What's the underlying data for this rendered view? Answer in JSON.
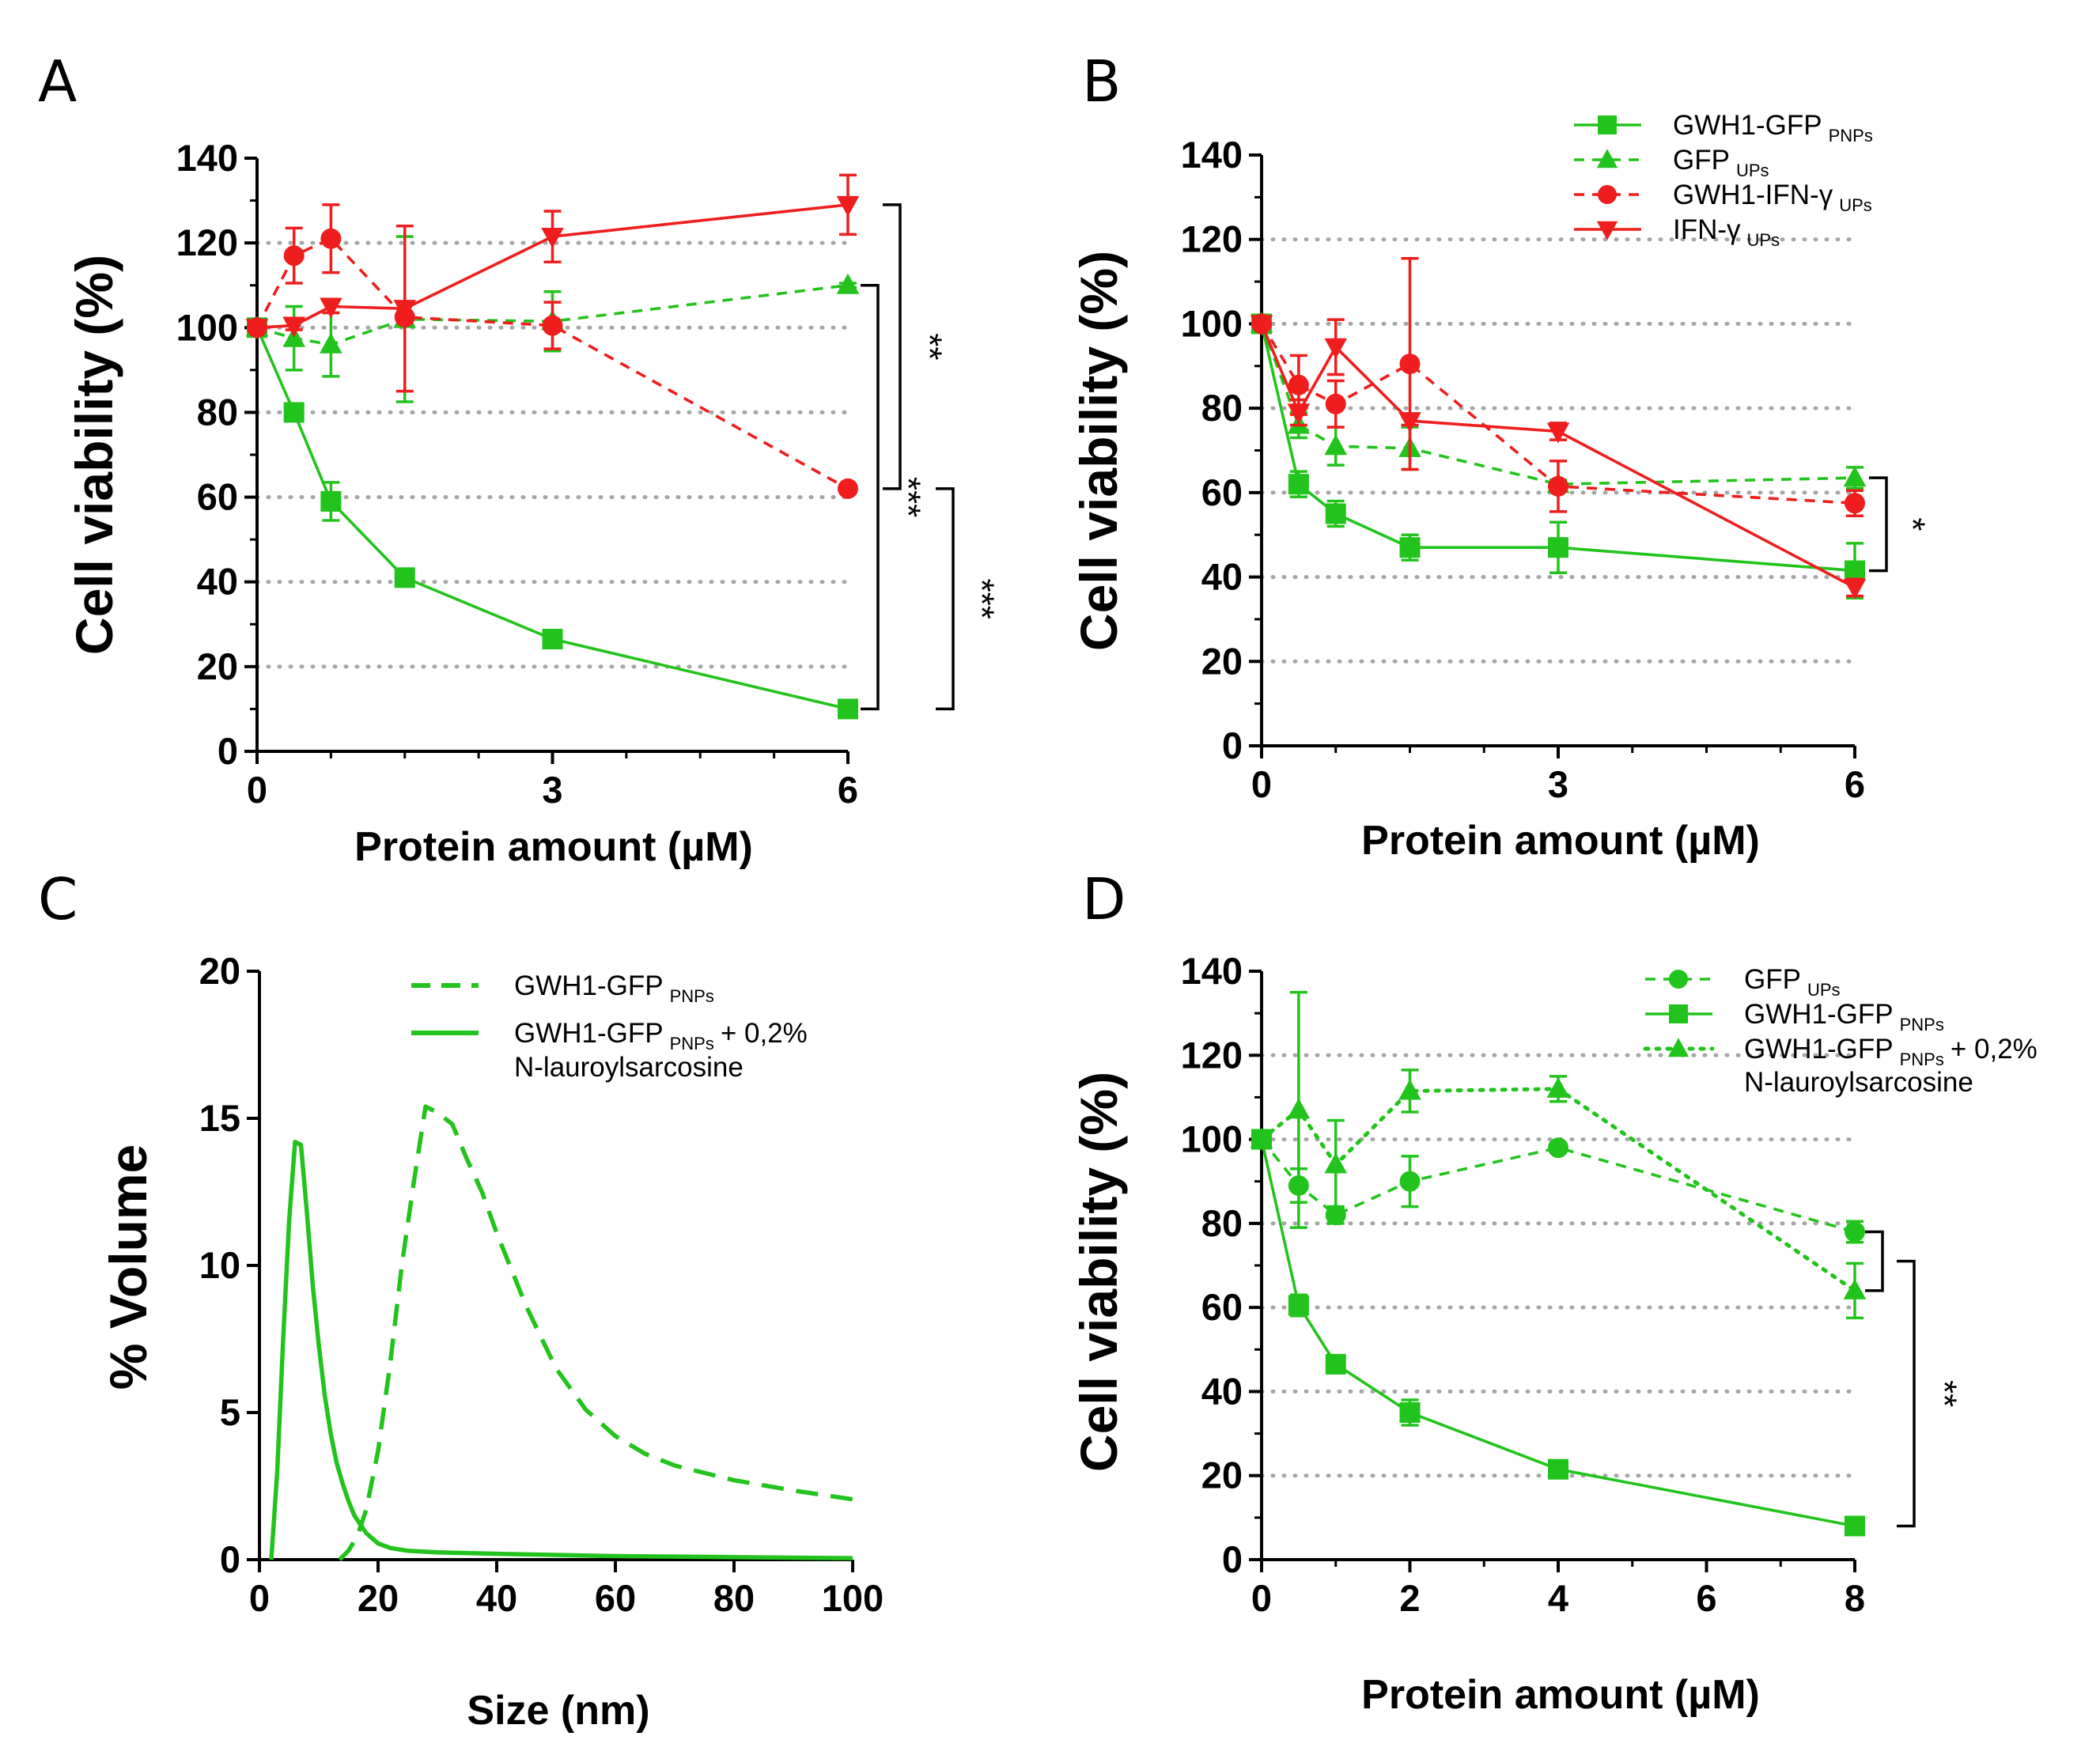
{
  "colors": {
    "green": "#22c31c",
    "red": "#ef1d1d",
    "grid": "#a6a6a6",
    "axis": "#000000"
  },
  "chart_data": [
    {
      "id": "A",
      "panel_label": "A",
      "type": "line",
      "xlabel": "Protein amount (µM)",
      "ylabel": "Cell viability (%)",
      "xlim": [
        0,
        6
      ],
      "ylim": [
        0,
        140
      ],
      "xticks": [
        "0",
        "3",
        "6"
      ],
      "yticks": [
        "0",
        "20",
        "40",
        "60",
        "80",
        "100",
        "120",
        "140"
      ],
      "gridlines": [
        20,
        40,
        60,
        80,
        100,
        120
      ],
      "series": [
        {
          "name": "GWH1-GFP PNPs",
          "color": "green",
          "marker": "square",
          "dash": "solid",
          "x": [
            0,
            0.375,
            0.75,
            1.5,
            3,
            6
          ],
          "y": [
            100,
            80,
            59,
            41,
            26.5,
            10
          ],
          "err": [
            0,
            2,
            4.5,
            1,
            1,
            1
          ]
        },
        {
          "name": "GFP UPs",
          "color": "green",
          "marker": "triangle",
          "dash": "dashed",
          "x": [
            0,
            0.375,
            0.75,
            1.5,
            3,
            6
          ],
          "y": [
            100,
            97.5,
            96,
            102,
            101.5,
            110
          ],
          "err": [
            0,
            7.5,
            7.5,
            19.5,
            7,
            0.5
          ]
        },
        {
          "name": "GWH1-IFN-γ UPs",
          "color": "red",
          "marker": "circle",
          "dash": "dashed",
          "x": [
            0,
            0.375,
            0.75,
            1.5,
            3,
            6
          ],
          "y": [
            100,
            117,
            121,
            102.5,
            100.5,
            62
          ],
          "err": [
            0,
            6.5,
            8,
            1,
            5.5,
            0.5
          ]
        },
        {
          "name": "IFN-γ UPs",
          "color": "red",
          "marker": "triangle-down",
          "dash": "solid",
          "x": [
            0,
            0.375,
            0.75,
            1.5,
            3,
            6
          ],
          "y": [
            100,
            100.5,
            105,
            104.5,
            121.5,
            129
          ],
          "err": [
            0,
            1,
            1.5,
            19.5,
            6,
            7
          ]
        }
      ],
      "brackets": [
        {
          "y1": 129,
          "y2": 62,
          "label": "**"
        },
        {
          "y1": 110,
          "y2": 10,
          "label": "***"
        },
        {
          "y1": 62,
          "y2": 10,
          "label": "***"
        }
      ]
    },
    {
      "id": "B",
      "panel_label": "B",
      "type": "line",
      "xlabel": "Protein amount (µM)",
      "ylabel": "Cell viability (%)",
      "xlim": [
        0,
        6
      ],
      "ylim": [
        0,
        140
      ],
      "xticks": [
        "0",
        "3",
        "6"
      ],
      "yticks": [
        "0",
        "20",
        "40",
        "60",
        "80",
        "100",
        "120",
        "140"
      ],
      "gridlines": [
        20,
        40,
        60,
        80,
        100,
        120
      ],
      "legend": "top-right",
      "series": [
        {
          "name": "GWH1-GFP",
          "sub": "PNPs",
          "color": "green",
          "marker": "square",
          "dash": "solid",
          "x": [
            0,
            0.375,
            0.75,
            1.5,
            3,
            6
          ],
          "y": [
            100,
            62,
            55,
            47,
            47,
            41.5
          ],
          "err": [
            0,
            3,
            3,
            3,
            6,
            6.5
          ]
        },
        {
          "name": "GFP",
          "sub": "UPs",
          "color": "green",
          "marker": "triangle",
          "dash": "dashed",
          "x": [
            0,
            0.375,
            0.75,
            1.5,
            3,
            6
          ],
          "y": [
            100,
            76,
            71,
            70.5,
            62,
            63.5
          ],
          "err": [
            0,
            3,
            4.5,
            5,
            1,
            2.5
          ]
        },
        {
          "name": "GWH1-IFN-γ",
          "sub": "UPs",
          "color": "red",
          "marker": "circle",
          "dash": "dashed",
          "x": [
            0,
            0.375,
            0.75,
            1.5,
            3,
            6
          ],
          "y": [
            100,
            85.5,
            81,
            90.5,
            61.5,
            57.5
          ],
          "err": [
            0,
            7,
            5.5,
            25,
            6,
            3
          ]
        },
        {
          "name": "IFN-γ",
          "sub": "UPs",
          "color": "red",
          "marker": "triangle-down",
          "dash": "solid",
          "x": [
            0,
            0.375,
            0.75,
            1.5,
            3,
            6
          ],
          "y": [
            100,
            79,
            94.5,
            77,
            74.5,
            37.5
          ],
          "err": [
            0,
            3,
            6.5,
            1,
            2,
            2
          ]
        }
      ],
      "brackets": [
        {
          "y1": 63.5,
          "y2": 41.5,
          "label": "*"
        }
      ]
    },
    {
      "id": "C",
      "panel_label": "C",
      "type": "line",
      "xlabel": "Size (nm)",
      "ylabel": "% Volume",
      "xlim": [
        0,
        100
      ],
      "ylim": [
        0,
        20
      ],
      "xticks": [
        "0",
        "20",
        "40",
        "60",
        "80",
        "100"
      ],
      "yticks": [
        "0",
        "5",
        "10",
        "15",
        "20"
      ],
      "legend": "top-right",
      "series": [
        {
          "name": "GWH1-GFP",
          "sub": "PNPs",
          "color": "green",
          "dash": "dashed",
          "x": [
            13.5,
            15,
            16.5,
            18,
            20,
            22,
            24,
            26,
            28,
            30,
            32.5,
            35,
            37.5,
            40,
            45,
            50,
            55,
            60,
            65,
            70,
            80,
            90,
            100
          ],
          "y": [
            0,
            0.3,
            0.8,
            1.7,
            3.7,
            6.6,
            10,
            12.8,
            15.4,
            15.2,
            14.8,
            13.6,
            12.5,
            11.1,
            8.6,
            6.5,
            5.1,
            4.2,
            3.6,
            3.2,
            2.7,
            2.35,
            2.05
          ]
        },
        {
          "name": "GWH1-GFP",
          "sub": "PNPs",
          "suffix": "+ 0,2%",
          "line2": "N-lauroylsarcosine",
          "color": "green",
          "dash": "solid",
          "x": [
            2,
            3,
            4,
            5,
            6,
            7,
            8,
            9,
            10,
            11,
            12,
            13,
            14,
            15,
            16,
            18,
            20,
            22,
            25,
            30,
            40,
            60,
            100
          ],
          "y": [
            0,
            3,
            7.5,
            11.5,
            14.2,
            14.1,
            11.8,
            9.3,
            7.3,
            5.6,
            4.3,
            3.3,
            2.6,
            2.0,
            1.5,
            0.9,
            0.55,
            0.4,
            0.3,
            0.25,
            0.2,
            0.12,
            0.05
          ]
        }
      ]
    },
    {
      "id": "D",
      "panel_label": "D",
      "type": "line",
      "xlabel": "Protein amount (µM)",
      "ylabel": "Cell viability (%)",
      "xlim": [
        0,
        8
      ],
      "ylim": [
        0,
        140
      ],
      "xticks": [
        "0",
        "2",
        "4",
        "6",
        "8"
      ],
      "yticks": [
        "0",
        "20",
        "40",
        "60",
        "80",
        "100",
        "120",
        "140"
      ],
      "gridlines": [
        20,
        40,
        60,
        80,
        100,
        120
      ],
      "legend": "top-right",
      "series": [
        {
          "name": "GFP",
          "sub": "UPs",
          "color": "green",
          "marker": "circle",
          "dash": "dashed",
          "x": [
            0,
            0.5,
            1,
            2,
            4,
            8
          ],
          "y": [
            100,
            89,
            82,
            90,
            98,
            78
          ],
          "err": [
            0,
            4,
            2,
            6,
            1,
            2.5
          ]
        },
        {
          "name": "GWH1-GFP",
          "sub": "PNPs",
          "color": "green",
          "marker": "square",
          "dash": "solid",
          "x": [
            0,
            0.5,
            1,
            2,
            4,
            8
          ],
          "y": [
            100,
            60.5,
            46.5,
            35,
            21.5,
            8
          ],
          "err": [
            0,
            2.5,
            1,
            3,
            1,
            0.5
          ]
        },
        {
          "name": "GWH1-GFP",
          "sub": "PNPs",
          "suffix": "+ 0,2%",
          "line2": "N-lauroylsarcosine",
          "color": "green",
          "marker": "triangle",
          "dash": "dotted",
          "x": [
            0,
            0.5,
            1,
            2,
            4,
            8
          ],
          "y": [
            100,
            107,
            94,
            111.5,
            112,
            64
          ],
          "err": [
            0,
            28,
            10.5,
            5,
            3,
            6.5
          ]
        }
      ],
      "brackets": [
        {
          "y1": 78,
          "y2": 64,
          "label": ""
        },
        {
          "y1": 71,
          "y2": 8,
          "label": "**"
        }
      ]
    }
  ]
}
